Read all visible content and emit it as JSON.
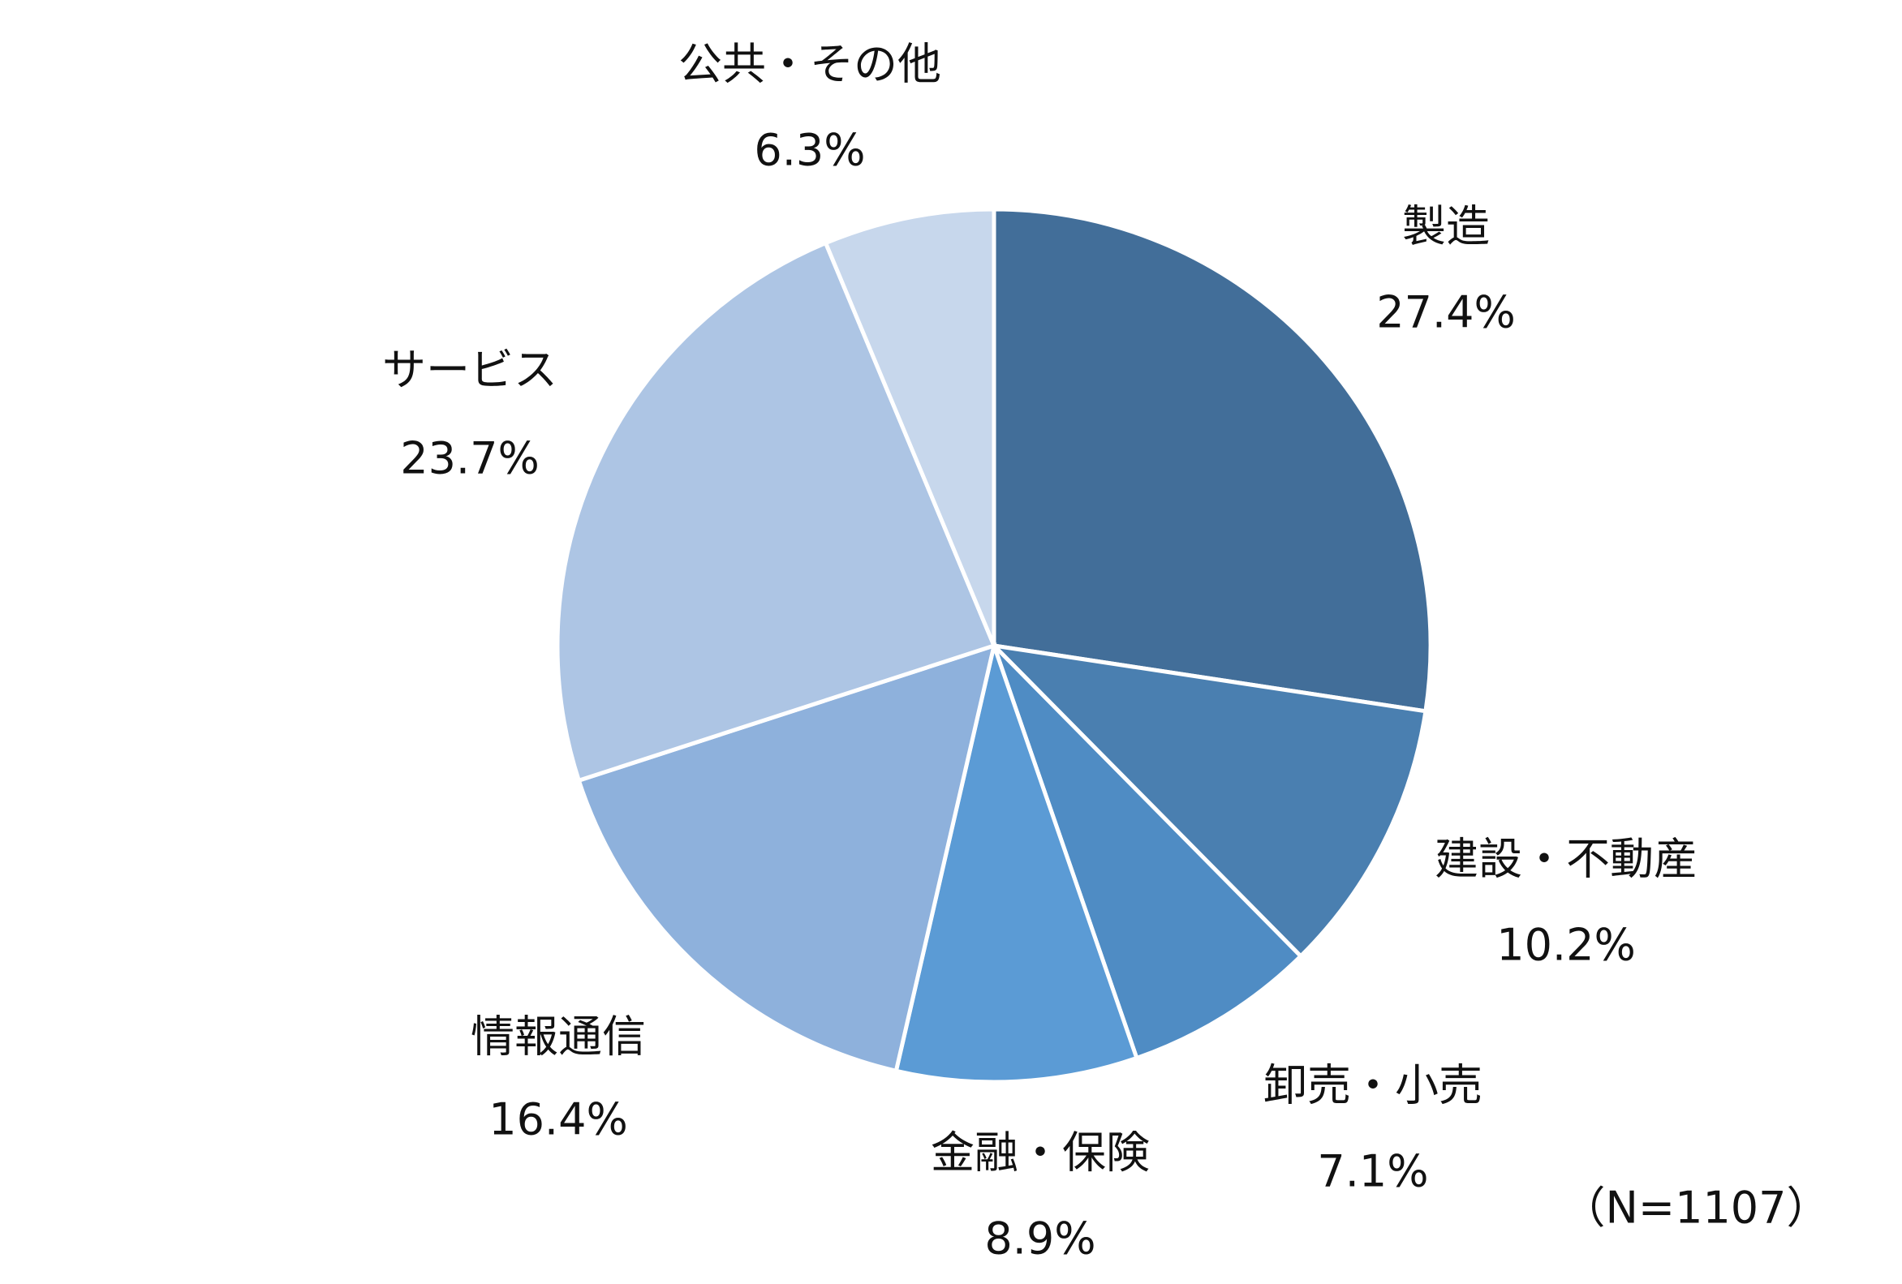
{
  "chart_data": {
    "type": "pie",
    "categories": [
      "製造",
      "建設・不動産",
      "卸売・小売",
      "金融・保険",
      "情報通信",
      "サービス",
      "公共・その他"
    ],
    "values": [
      27.4,
      10.2,
      7.1,
      8.9,
      16.4,
      23.7,
      6.3
    ],
    "value_labels": [
      "27.4%",
      "10.2%",
      "7.1%",
      "8.9%",
      "16.4%",
      "23.7%",
      "6.3%"
    ],
    "colors": [
      "#426e99",
      "#4a7fb0",
      "#4f8cc4",
      "#5b9bd5",
      "#8eb1dc",
      "#adc5e4",
      "#c7d7ec"
    ],
    "note": "（N=1107）"
  }
}
